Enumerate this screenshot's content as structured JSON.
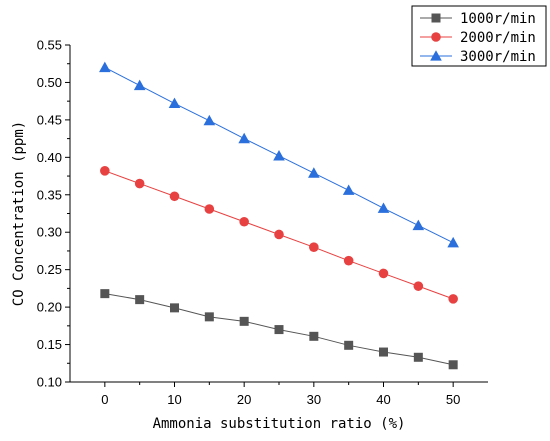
{
  "chart_data": {
    "type": "line",
    "xlabel": "Ammonia substitution ratio (%)",
    "ylabel": "CO Concentration (ppm)",
    "xlim": [
      -5,
      55
    ],
    "ylim": [
      0.1,
      0.55
    ],
    "xticks": [
      0,
      10,
      20,
      30,
      40,
      50
    ],
    "yticks": [
      0.1,
      0.15,
      0.2,
      0.25,
      0.3,
      0.35,
      0.4,
      0.45,
      0.5,
      0.55
    ],
    "ytick_labels": [
      "0.10",
      "0.15",
      "0.20",
      "0.25",
      "0.30",
      "0.35",
      "0.40",
      "0.45",
      "0.50",
      "0.55"
    ],
    "grid": false,
    "legend_position": "top-right",
    "x": [
      0,
      5,
      10,
      15,
      20,
      25,
      30,
      35,
      40,
      45,
      50
    ],
    "series": [
      {
        "name": "1000r/min",
        "marker": "square",
        "color": "#555555",
        "values": [
          0.218,
          0.21,
          0.199,
          0.187,
          0.181,
          0.17,
          0.161,
          0.149,
          0.14,
          0.133,
          0.123
        ]
      },
      {
        "name": "2000r/min",
        "marker": "circle",
        "color": "#e84141",
        "values": [
          0.382,
          0.365,
          0.348,
          0.331,
          0.314,
          0.297,
          0.28,
          0.262,
          0.245,
          0.228,
          0.211
        ]
      },
      {
        "name": "3000r/min",
        "marker": "triangle",
        "color": "#2a6fdc",
        "values": [
          0.52,
          0.496,
          0.472,
          0.449,
          0.425,
          0.402,
          0.379,
          0.356,
          0.332,
          0.309,
          0.286
        ]
      }
    ]
  }
}
